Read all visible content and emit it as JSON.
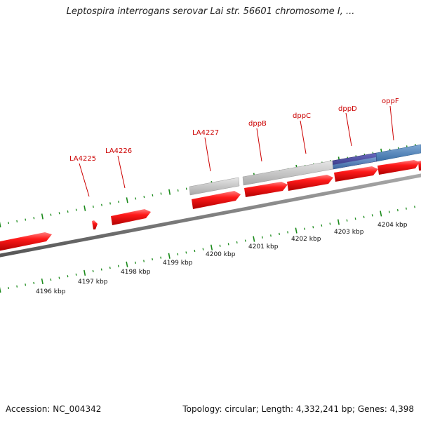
{
  "title": "Leptospira interrogans serovar Lai str. 56601 chromosome I, ...",
  "footer": {
    "accession": "Accession: NC_004342",
    "summary": "Topology: circular; Length: 4,332,241 bp; Genes: 4,398"
  },
  "scale_labels": [
    "4196 kbp",
    "4197 kbp",
    "4198 kbp",
    "4199 kbp",
    "4200 kbp",
    "4201 kbp",
    "4202 kbp",
    "4203 kbp",
    "4204 kbp"
  ],
  "genes": [
    {
      "label": "LA4225"
    },
    {
      "label": "LA4226"
    },
    {
      "label": "LA4227"
    },
    {
      "label": "dppB"
    },
    {
      "label": "dppC"
    },
    {
      "label": "dppD"
    },
    {
      "label": "oppF"
    }
  ],
  "colors": {
    "cds": "#ee0000",
    "gene_label": "#cc0000",
    "tick": "#1a8a1a",
    "backbone": "#777777",
    "gray_feature": "#bbbbbb",
    "blue_feature": "#4a7fb5",
    "navy_feature": "#3a3a88"
  }
}
